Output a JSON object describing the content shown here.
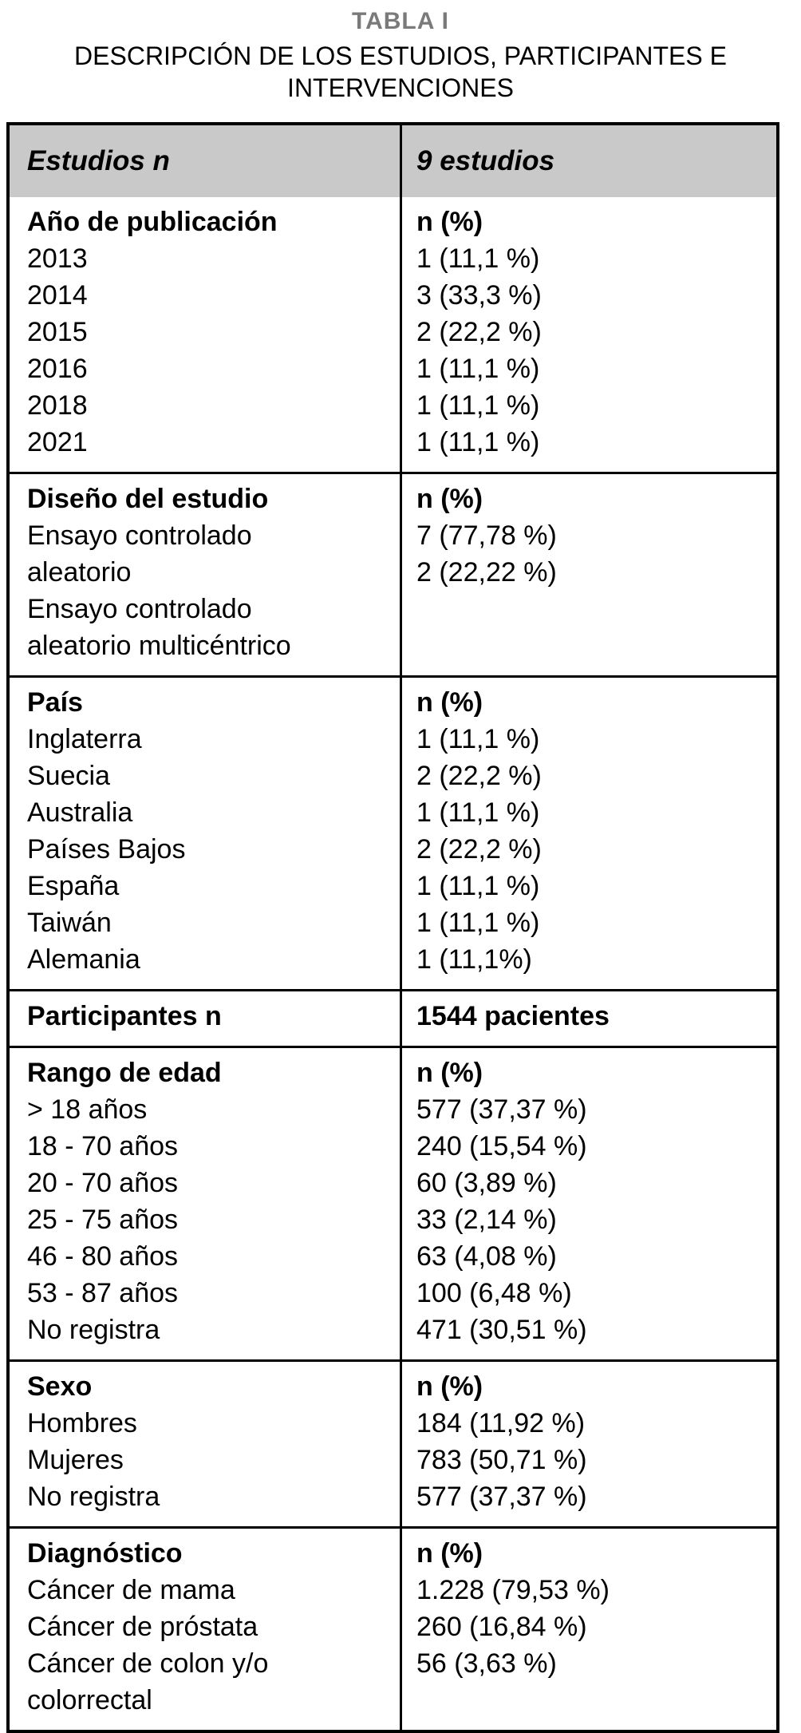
{
  "page": {
    "title": "TABLA I",
    "subtitle": "DESCRIPCIÓN DE LOS ESTUDIOS, PARTICIPANTES E INTERVENCIONES",
    "title_color": "#7a7a7a"
  },
  "table": {
    "header_bg": "#c9c9c9",
    "header": {
      "left": "Estudios n",
      "right": "9 estudios"
    },
    "sections": [
      {
        "id": "anio-publicacion",
        "left_lines": [
          "Año de publicación",
          "2013",
          "2014",
          "2015",
          "2016",
          "2018",
          "2021"
        ],
        "right_lines": [
          "n (%)",
          "1 (11,1 %)",
          "3 (33,3 %)",
          "2 (22,2 %)",
          "1 (11,1 %)",
          "1 (11,1 %)",
          "1 (11,1 %)"
        ]
      },
      {
        "id": "diseno-estudio",
        "left_lines": [
          "Diseño del estudio",
          "Ensayo controlado",
          "aleatorio",
          "Ensayo controlado",
          "aleatorio multicéntrico"
        ],
        "right_lines": [
          "n (%)",
          "7 (77,78 %)",
          "2 (22,22 %)"
        ]
      },
      {
        "id": "pais",
        "left_lines": [
          "País",
          "Inglaterra",
          "Suecia",
          "Australia",
          "Países Bajos",
          "España",
          "Taiwán",
          "Alemania"
        ],
        "right_lines": [
          "n (%)",
          "1 (11,1 %)",
          "2 (22,2 %)",
          "1 (11,1 %)",
          "2 (22,2 %)",
          "1 (11,1 %)",
          "1 (11,1 %)",
          "1 (11,1%)"
        ]
      },
      {
        "id": "participantes",
        "left_lines": [
          "Participantes n"
        ],
        "right_lines": [
          "1544 pacientes"
        ]
      },
      {
        "id": "rango-edad",
        "left_lines": [
          "Rango de edad",
          "> 18 años",
          "18 - 70 años",
          "20 - 70 años",
          "25 - 75 años",
          "46 - 80 años",
          "53 - 87 años",
          "No registra"
        ],
        "right_lines": [
          "n (%)",
          "577 (37,37 %)",
          "240 (15,54 %)",
          "60 (3,89 %)",
          "33 (2,14 %)",
          "63 (4,08 %)",
          "100 (6,48 %)",
          "471 (30,51 %)"
        ]
      },
      {
        "id": "sexo",
        "left_lines": [
          "Sexo",
          "Hombres",
          "Mujeres",
          "No registra"
        ],
        "right_lines": [
          "n (%)",
          "184 (11,92 %)",
          "783 (50,71 %)",
          "577 (37,37 %)"
        ]
      },
      {
        "id": "diagnostico",
        "left_lines": [
          "Diagnóstico",
          "Cáncer de mama",
          "Cáncer de próstata",
          "Cáncer de colon y/o",
          "colorrectal"
        ],
        "right_lines": [
          "n (%)",
          "1.228 (79,53 %)",
          "260 (16,84 %)",
          "56 (3,63 %)"
        ]
      }
    ]
  }
}
